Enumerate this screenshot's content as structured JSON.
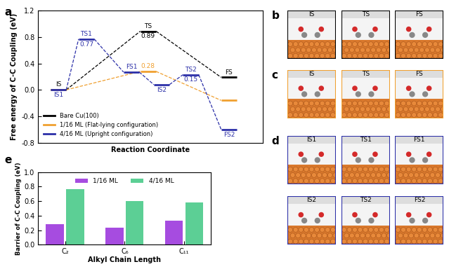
{
  "chart_data": [
    {
      "type": "energy_profile",
      "ylabel": "Free energy of C-C Coupling (eV)",
      "xlabel": "Reaction Coordinate",
      "xlim": [
        0,
        10
      ],
      "xticks": [],
      "ylim": [
        -0.8,
        1.2
      ],
      "yticks": [
        -0.8,
        -0.4,
        0.0,
        0.4,
        0.8,
        1.2
      ],
      "tick_labels": "y",
      "legend": "lower left",
      "series": [
        {
          "name": "Bare Cu(100)",
          "color": "#000000",
          "x": [
            0.9,
            4.9,
            8.5
          ],
          "values": [
            0,
            0.89,
            0.19
          ],
          "states": [
            "IS",
            "TS",
            "FS"
          ],
          "barriers": [
            null,
            0.89,
            null
          ]
        },
        {
          "name": "1/16 ML (Flat-lying configuration)",
          "color": "#f0a030",
          "x": [
            0.9,
            4.9,
            8.5
          ],
          "values": [
            0,
            0.28,
            -0.16
          ],
          "states": [
            null,
            null,
            null
          ],
          "barriers": [
            null,
            0.28,
            null
          ]
        },
        {
          "name": "4/16 ML (Upright configuration)",
          "color": "#2b2fa8",
          "x": [
            0.9,
            2.15,
            4.15,
            5.5,
            6.8,
            8.5
          ],
          "values": [
            0,
            0.77,
            0.27,
            0.08,
            0.23,
            -0.6
          ],
          "states": [
            "IS1",
            "TS1",
            "FS1",
            "IS2",
            "TS2",
            "FS2"
          ],
          "barriers": [
            null,
            0.77,
            null,
            null,
            0.15,
            null
          ]
        }
      ]
    },
    {
      "type": "bar",
      "ylabel": "Barrier of C-C Coupling (eV)",
      "xlabel": "Alkyl Chain Length",
      "categories": [
        "C₂",
        "C₆",
        "C₁₁"
      ],
      "ylim": [
        0,
        1.0
      ],
      "yticks": [
        0.0,
        0.2,
        0.4,
        0.6,
        0.8,
        1.0
      ],
      "legend": "upper center",
      "series": [
        {
          "name": "1/16 ML",
          "color": "#a64ce0",
          "values": [
            0.28,
            0.24,
            0.33
          ]
        },
        {
          "name": "4/16 ML",
          "color": "#5ccf95",
          "values": [
            0.77,
            0.6,
            0.58
          ]
        }
      ]
    }
  ],
  "chart_labels": [
    "a",
    "e"
  ],
  "snapshots": [
    {
      "label": "b",
      "color": "#000000",
      "frames": [
        [
          "IS",
          "TS",
          "FS"
        ]
      ]
    },
    {
      "label": "c",
      "color": "#f0a030",
      "frames": [
        [
          "IS",
          "TS",
          "FS"
        ]
      ]
    },
    {
      "label": "d",
      "color": "#2b2fa8",
      "frames": [
        [
          "IS1",
          "TS1",
          "FS1"
        ],
        [
          "IS2",
          "TS2",
          "FS2"
        ]
      ]
    }
  ]
}
